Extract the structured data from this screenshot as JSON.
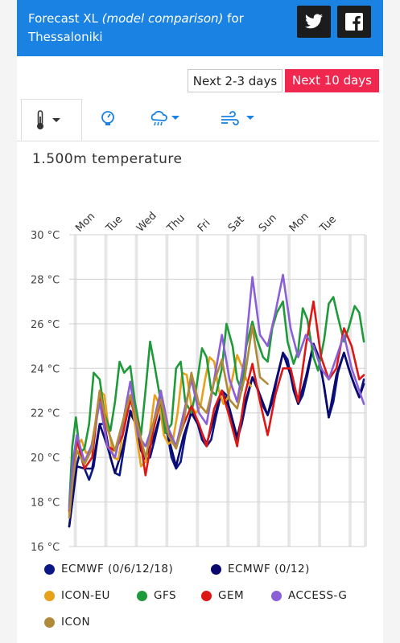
{
  "header": {
    "title_pre": "Forecast XL ",
    "title_model": "(model comparison)",
    "title_for": " for",
    "title_city": "Thessaloniki",
    "twitter_icon": "twitter-icon",
    "facebook_icon": "facebook-icon"
  },
  "buttons": {
    "next_2_3": "Next 2-3 days",
    "next_10": "Next 10 days",
    "active_color": "#f0284f"
  },
  "tabs": [
    {
      "icon": "thermometer-icon",
      "active": true
    },
    {
      "icon": "pressure-gauge-icon",
      "active": false
    },
    {
      "icon": "cloud-rain-icon",
      "active": false
    },
    {
      "icon": "wind-icon",
      "active": false
    }
  ],
  "chart_title": "1.500m temperature",
  "chart_data": {
    "type": "line",
    "title": "1.500m temperature",
    "x_unit": "days from start",
    "x_range": [
      0,
      9.7
    ],
    "day_labels": [
      "Mon",
      "Tue",
      "Wed",
      "Thu",
      "Fri",
      "Sat",
      "Sun",
      "Mon",
      "Tue"
    ],
    "day_label_x": [
      0.5,
      1.5,
      2.5,
      3.5,
      4.5,
      5.5,
      6.5,
      7.5,
      8.5
    ],
    "y_ticks": [
      "16 °C",
      "18 °C",
      "20 °C",
      "22 °C",
      "24 °C",
      "26 °C",
      "28 °C",
      "30 °C"
    ],
    "y_tick_values": [
      16,
      18,
      20,
      22,
      24,
      26,
      28,
      30
    ],
    "ylim": [
      16,
      30
    ],
    "grid": true,
    "legend_position": "bottom",
    "series": [
      {
        "name": "ECMWF (0/6/12/18)",
        "color": "#0b1785",
        "x": [
          0,
          0.1,
          0.22,
          0.35,
          0.5,
          0.65,
          0.8,
          1.0,
          1.15,
          1.35,
          1.5,
          1.65,
          1.8,
          2.0,
          2.15,
          2.35,
          2.5,
          2.65,
          2.8,
          3.0,
          3.15,
          3.35,
          3.5,
          3.65,
          3.8,
          4.0,
          4.15,
          4.35,
          4.5,
          4.65,
          4.8,
          5.0,
          5.15,
          5.35,
          5.5,
          5.65,
          5.8,
          6.0,
          6.15,
          6.35,
          6.5,
          6.65,
          6.8,
          7.0,
          7.15,
          7.35,
          7.5,
          7.65,
          7.8,
          8.0,
          8.15,
          8.35,
          8.5,
          8.65,
          8.8,
          9.0,
          9.15,
          9.35,
          9.5,
          9.65
        ],
        "y": [
          16.9,
          18.0,
          19.5,
          20.2,
          19.5,
          19.0,
          19.6,
          21.5,
          21.5,
          20.0,
          19.3,
          19.2,
          20.5,
          22.1,
          21.8,
          20.3,
          19.9,
          20.0,
          20.8,
          22.0,
          21.6,
          20.0,
          19.5,
          19.8,
          21.0,
          22.1,
          21.8,
          20.8,
          20.5,
          20.8,
          21.8,
          23.0,
          22.8,
          21.5,
          20.8,
          21.5,
          22.5,
          23.6,
          23.2,
          22.3,
          21.9,
          22.5,
          23.5,
          24.7,
          24.4,
          23.0,
          22.4,
          22.8,
          23.7,
          25.1,
          24.6,
          23.2,
          21.8,
          22.5,
          23.8,
          24.7,
          24.0,
          23.2,
          22.7,
          23.5
        ]
      },
      {
        "name": "ECMWF (0/12)",
        "color": "#0a0a6e",
        "x": [
          0,
          0.12,
          0.25,
          0.5,
          0.75,
          1.0,
          1.25,
          1.5,
          1.75,
          2.0,
          2.25,
          2.5,
          2.75,
          3.0,
          3.25,
          3.5,
          3.75,
          4.0,
          4.25,
          4.5,
          4.75,
          5.0,
          5.25,
          5.5,
          5.75,
          6.0,
          6.25,
          6.5,
          6.75,
          7.0,
          7.25,
          7.5,
          7.75,
          8.0,
          8.25,
          8.5,
          8.75,
          9.0,
          9.25,
          9.5,
          9.65
        ],
        "y": [
          16.9,
          18.2,
          19.6,
          19.5,
          19.5,
          21.5,
          20.5,
          19.3,
          20.4,
          22.0,
          21.3,
          20.0,
          20.8,
          22.0,
          20.9,
          19.6,
          21.0,
          22.0,
          21.4,
          20.6,
          21.8,
          23.0,
          22.2,
          20.9,
          22.4,
          23.6,
          22.8,
          21.9,
          23.3,
          24.7,
          23.7,
          22.4,
          23.6,
          25.1,
          24.0,
          21.8,
          23.7,
          24.7,
          23.6,
          22.7,
          23.3
        ]
      },
      {
        "name": "ICON-EU",
        "color": "#e8a11a",
        "x": [
          0,
          0.12,
          0.25,
          0.4,
          0.55,
          0.7,
          0.85,
          1.0,
          1.15,
          1.3,
          1.45,
          1.6,
          1.75,
          1.9,
          2.05,
          2.2,
          2.35,
          2.5,
          2.65,
          2.8,
          2.95,
          3.1,
          3.25,
          3.4,
          3.55,
          3.7,
          3.85,
          4.0,
          4.15,
          4.3,
          4.45,
          4.6,
          4.75,
          4.9,
          5.05,
          5.2,
          5.35,
          5.5,
          5.65,
          5.8,
          5.95
        ],
        "y": [
          17.5,
          19.2,
          20.5,
          20.8,
          20.2,
          20.3,
          21.5,
          23.0,
          22.8,
          21.2,
          20.0,
          19.9,
          21.0,
          22.7,
          22.5,
          21.0,
          19.6,
          19.8,
          21.2,
          22.8,
          22.4,
          21.0,
          20.6,
          20.8,
          22.0,
          23.8,
          23.7,
          22.3,
          22.0,
          22.3,
          23.5,
          24.5,
          24.3,
          23.0,
          22.4,
          22.7,
          23.6,
          24.6,
          24.1,
          23.5,
          23.2
        ]
      },
      {
        "name": "GFS",
        "color": "#1f9a3a",
        "x": [
          0,
          0.1,
          0.22,
          0.35,
          0.5,
          0.65,
          0.8,
          1.0,
          1.15,
          1.35,
          1.5,
          1.65,
          1.8,
          2.0,
          2.15,
          2.35,
          2.5,
          2.65,
          2.8,
          3.0,
          3.15,
          3.35,
          3.5,
          3.65,
          3.8,
          4.0,
          4.15,
          4.35,
          4.5,
          4.65,
          4.8,
          5.0,
          5.15,
          5.35,
          5.5,
          5.65,
          5.8,
          6.0,
          6.15,
          6.35,
          6.5,
          6.65,
          6.8,
          7.0,
          7.15,
          7.35,
          7.5,
          7.65,
          7.8,
          8.0,
          8.15,
          8.35,
          8.5,
          8.65,
          8.8,
          9.0,
          9.15,
          9.35,
          9.5,
          9.65
        ],
        "y": [
          17.8,
          20.5,
          21.8,
          20.2,
          20.4,
          21.5,
          23.8,
          23.5,
          22.0,
          21.2,
          22.5,
          24.3,
          23.8,
          24.1,
          22.5,
          21.0,
          23.0,
          25.2,
          24.1,
          22.5,
          21.1,
          21.5,
          24.0,
          24.3,
          22.5,
          22.0,
          23.0,
          24.9,
          24.5,
          23.0,
          22.8,
          24.0,
          26.0,
          25.0,
          23.5,
          23.0,
          25.0,
          26.1,
          25.3,
          24.5,
          24.3,
          25.8,
          26.5,
          27.0,
          25.2,
          24.2,
          24.8,
          26.7,
          26.2,
          24.5,
          23.9,
          25.3,
          26.9,
          27.2,
          26.3,
          25.2,
          25.8,
          26.8,
          26.5,
          25.2
        ]
      },
      {
        "name": "GEM",
        "color": "#dd1616",
        "x": [
          0,
          0.12,
          0.25,
          0.5,
          0.75,
          1.0,
          1.25,
          1.5,
          1.75,
          2.0,
          2.25,
          2.5,
          2.75,
          3.0,
          3.25,
          3.5,
          3.75,
          4.0,
          4.25,
          4.5,
          4.75,
          5.0,
          5.25,
          5.5,
          5.75,
          6.0,
          6.25,
          6.5,
          6.75,
          7.0,
          7.25,
          7.5,
          7.75,
          8.0,
          8.25,
          8.5,
          8.75,
          9.0,
          9.25,
          9.5,
          9.65
        ],
        "y": [
          17.6,
          19.5,
          20.8,
          19.5,
          20.0,
          22.9,
          20.5,
          20.3,
          21.0,
          22.6,
          21.5,
          19.2,
          21.2,
          22.6,
          21.2,
          20.5,
          21.5,
          22.3,
          21.5,
          20.5,
          22.2,
          23.0,
          21.8,
          20.5,
          22.8,
          24.2,
          22.5,
          21.0,
          22.8,
          24.0,
          24.0,
          22.5,
          25.0,
          27.0,
          24.5,
          23.5,
          24.0,
          25.8,
          25.0,
          23.5,
          23.7
        ]
      },
      {
        "name": "ACCESS-G",
        "color": "#8b5fd6",
        "x": [
          0,
          0.12,
          0.25,
          0.5,
          0.75,
          1.0,
          1.25,
          1.5,
          1.75,
          2.0,
          2.25,
          2.5,
          2.75,
          3.0,
          3.25,
          3.5,
          3.75,
          4.0,
          4.25,
          4.5,
          4.75,
          5.0,
          5.25,
          5.5,
          5.75,
          6.0,
          6.25,
          6.5,
          6.75,
          7.0,
          7.25,
          7.5,
          7.75,
          8.0,
          8.25,
          8.5,
          8.75,
          9.0,
          9.25,
          9.5,
          9.65
        ],
        "y": [
          17.7,
          19.8,
          21.0,
          19.8,
          20.6,
          22.5,
          20.5,
          20.0,
          21.5,
          23.4,
          21.0,
          20.5,
          21.5,
          23.0,
          21.3,
          20.5,
          22.0,
          23.5,
          22.0,
          21.5,
          23.5,
          25.5,
          23.5,
          22.5,
          24.5,
          28.1,
          25.5,
          25.0,
          26.5,
          28.2,
          25.8,
          24.5,
          25.5,
          25.0,
          24.0,
          23.5,
          24.5,
          25.5,
          24.0,
          23.0,
          22.4
        ]
      },
      {
        "name": "ICON",
        "color": "#b08a38",
        "x": [
          0,
          0.12,
          0.25,
          0.5,
          0.75,
          1.0,
          1.25,
          1.5,
          1.75,
          2.0,
          2.25,
          2.5,
          2.75,
          3.0,
          3.25,
          3.5,
          3.75,
          4.0,
          4.25,
          4.5,
          4.75,
          5.0,
          5.25,
          5.5,
          5.75,
          6.0,
          6.25,
          6.5
        ],
        "y": [
          17.3,
          19.0,
          20.3,
          19.7,
          20.4,
          23.0,
          21.3,
          20.3,
          21.6,
          22.8,
          21.4,
          20.0,
          21.5,
          22.6,
          21.0,
          20.4,
          21.6,
          23.8,
          22.4,
          22.0,
          23.4,
          24.4,
          22.6,
          22.2,
          23.6,
          25.9,
          23.6,
          23.3
        ]
      }
    ]
  },
  "legend": [
    {
      "label": "ECMWF (0/6/12/18)",
      "color": "#0b1785"
    },
    {
      "label": "ECMWF (0/12)",
      "color": "#0a0a6e"
    },
    {
      "label": "ICON-EU",
      "color": "#e8a11a"
    },
    {
      "label": "GFS",
      "color": "#1f9a3a"
    },
    {
      "label": "GEM",
      "color": "#dd1616"
    },
    {
      "label": "ACCESS-G",
      "color": "#8b5fd6"
    },
    {
      "label": "ICON",
      "color": "#b08a38"
    }
  ]
}
